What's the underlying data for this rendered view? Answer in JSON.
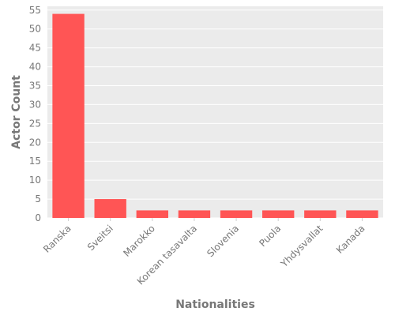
{
  "chart_data": {
    "type": "bar",
    "categories": [
      "Ranska",
      "Sveitsi",
      "Marokko",
      "Korean tasavalta",
      "Slovenia",
      "Puola",
      "Yhdysvallat",
      "Kanada"
    ],
    "values": [
      54,
      5,
      2,
      2,
      2,
      2,
      2,
      2
    ],
    "xlabel": "Nationalities",
    "ylabel": "Actor Count",
    "ylim": [
      0,
      56
    ],
    "yticks": [
      0,
      5,
      10,
      15,
      20,
      25,
      30,
      35,
      40,
      45,
      50,
      55
    ],
    "grid": true,
    "colors": {
      "bar": "#ff5555",
      "panel": "#ebebeb",
      "grid": "#ffffff",
      "text": "#777777"
    }
  }
}
